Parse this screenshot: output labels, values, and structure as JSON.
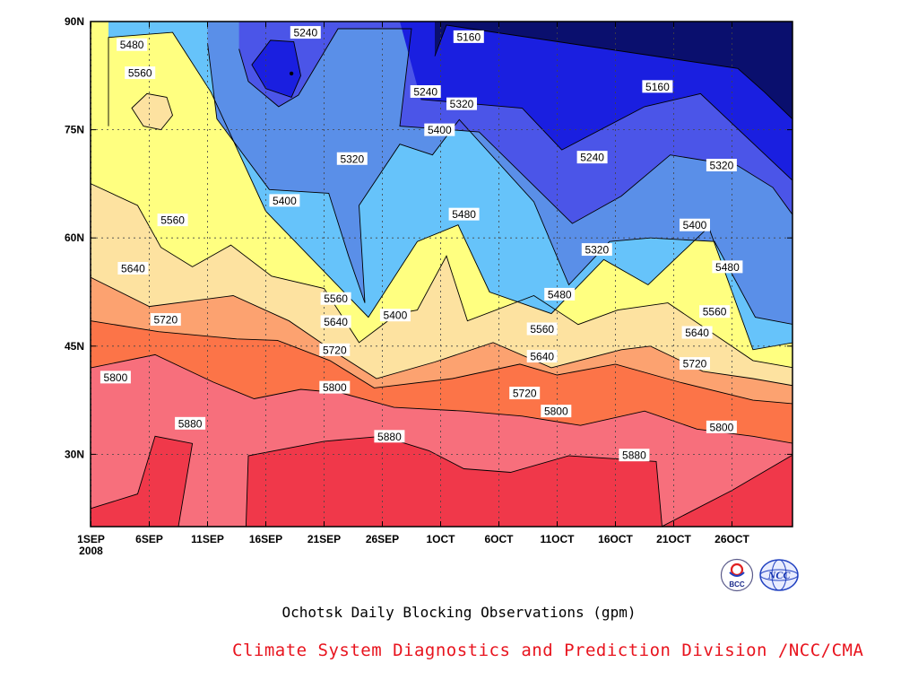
{
  "chart_data": {
    "type": "contour",
    "title": "Ochotsk Daily Blocking Observations (gpm)",
    "xlabel": "",
    "ylabel": "",
    "x_range_days": [
      0,
      60
    ],
    "ylim": [
      20,
      90
    ],
    "x_ticks": [
      {
        "day": 0,
        "label": "1SEP",
        "sub": "2008"
      },
      {
        "day": 5,
        "label": "6SEP"
      },
      {
        "day": 10,
        "label": "11SEP"
      },
      {
        "day": 15,
        "label": "16SEP"
      },
      {
        "day": 20,
        "label": "21SEP"
      },
      {
        "day": 25,
        "label": "26SEP"
      },
      {
        "day": 30,
        "label": "1OCT"
      },
      {
        "day": 35,
        "label": "6OCT"
      },
      {
        "day": 40,
        "label": "11OCT"
      },
      {
        "day": 45,
        "label": "16OCT"
      },
      {
        "day": 50,
        "label": "21OCT"
      },
      {
        "day": 55,
        "label": "26OCT"
      }
    ],
    "y_ticks": [
      {
        "lat": 30,
        "label": "30N"
      },
      {
        "lat": 45,
        "label": "45N"
      },
      {
        "lat": 60,
        "label": "60N"
      },
      {
        "lat": 75,
        "label": "75N"
      },
      {
        "lat": 90,
        "label": "90N"
      }
    ],
    "grid": true,
    "levels": [
      5160,
      5240,
      5320,
      5400,
      5480,
      5560,
      5640,
      5720,
      5800,
      5880
    ],
    "fill_colors": [
      "#0a0f6e",
      "#1a1fe0",
      "#4b55e8",
      "#5a8fe8",
      "#66c3fa",
      "#ffff80",
      "#fde2a0",
      "#fca270",
      "#fc7448",
      "#f76f7c",
      "#f0384a"
    ],
    "contours": [
      {
        "level": 5160,
        "points": [
          [
            29.5,
            85.2
          ],
          [
            30.5,
            89.5
          ],
          [
            55.5,
            83.5
          ],
          [
            57.8,
            80.2
          ],
          [
            60.3,
            76.3
          ],
          [
            60.3,
            90.0
          ],
          [
            29.5,
            90.0
          ]
        ]
      },
      {
        "level": 5240,
        "points": [
          [
            28.3,
            79.2
          ],
          [
            37.0,
            78.0
          ],
          [
            40.4,
            72.2
          ],
          [
            47.5,
            78.2
          ],
          [
            52.3,
            80.0
          ],
          [
            60.3,
            67.8
          ],
          [
            60.3,
            90.0
          ],
          [
            26.5,
            90.0
          ]
        ]
      },
      {
        "level": 5320,
        "points": [
          [
            12.7,
            86.2
          ],
          [
            13.5,
            81.7
          ],
          [
            16.1,
            78.2
          ],
          [
            17.8,
            79.8
          ],
          [
            21.2,
            89.0
          ],
          [
            27.5,
            89.0
          ],
          [
            26.5,
            75.5
          ],
          [
            33.3,
            74.7
          ],
          [
            41.3,
            62.0
          ],
          [
            45.5,
            65.8
          ],
          [
            49.7,
            71.5
          ],
          [
            55.5,
            70.0
          ],
          [
            58.5,
            67.0
          ],
          [
            60.3,
            63.0
          ],
          [
            60.3,
            90.0
          ],
          [
            12.7,
            90.0
          ]
        ]
      },
      {
        "level": 5400,
        "points": [
          [
            10.0,
            87.0
          ],
          [
            10.8,
            76.5
          ],
          [
            15.3,
            66.7
          ],
          [
            20.4,
            66.2
          ],
          [
            22.1,
            57.5
          ],
          [
            23.5,
            51.0
          ],
          [
            23.0,
            64.5
          ],
          [
            26.5,
            73.0
          ],
          [
            29.3,
            71.5
          ],
          [
            31.6,
            76.4
          ],
          [
            38.0,
            65.0
          ],
          [
            41.0,
            53.5
          ],
          [
            44.5,
            59.5
          ],
          [
            48.0,
            60.0
          ],
          [
            53.5,
            59.5
          ],
          [
            57.0,
            49.0
          ],
          [
            60.3,
            48.0
          ],
          [
            60.3,
            90.0
          ],
          [
            10.0,
            90.0
          ]
        ]
      },
      {
        "level": 5480,
        "points": [
          [
            1.5,
            75.5
          ],
          [
            1.5,
            87.8
          ],
          [
            7.0,
            88.5
          ],
          [
            10.3,
            80.2
          ],
          [
            15.0,
            63.7
          ],
          [
            23.8,
            49.0
          ],
          [
            26.2,
            55.0
          ],
          [
            28.0,
            59.5
          ],
          [
            31.5,
            61.8
          ],
          [
            34.2,
            52.5
          ],
          [
            39.5,
            49.5
          ],
          [
            44.0,
            57.0
          ],
          [
            47.8,
            53.5
          ],
          [
            53.0,
            61.5
          ],
          [
            56.8,
            44.5
          ],
          [
            60.3,
            45.5
          ],
          [
            60.3,
            90.0
          ],
          [
            1.5,
            90.0
          ]
        ]
      },
      {
        "level": 5560,
        "points": [
          [
            0.0,
            67.5
          ],
          [
            4.0,
            64.5
          ],
          [
            6.0,
            58.7
          ],
          [
            8.7,
            56.0
          ],
          [
            12.0,
            59.0
          ],
          [
            15.5,
            54.7
          ],
          [
            20.0,
            53.0
          ],
          [
            23.0,
            45.5
          ],
          [
            26.3,
            49.5
          ],
          [
            28.0,
            50.0
          ],
          [
            30.5,
            57.5
          ],
          [
            32.3,
            48.5
          ],
          [
            38.0,
            52.0
          ],
          [
            41.8,
            48.0
          ],
          [
            45.2,
            50.0
          ],
          [
            49.5,
            51.0
          ],
          [
            56.8,
            43.0
          ],
          [
            60.3,
            42.0
          ],
          [
            60.3,
            90.0
          ],
          [
            0.0,
            90.0
          ]
        ]
      },
      {
        "level": 5640,
        "points": [
          [
            0.0,
            54.5
          ],
          [
            5.0,
            50.5
          ],
          [
            12.2,
            52.0
          ],
          [
            17.0,
            48.5
          ],
          [
            20.8,
            44.3
          ],
          [
            24.5,
            40.5
          ],
          [
            29.5,
            42.8
          ],
          [
            34.5,
            45.5
          ],
          [
            39.5,
            42.0
          ],
          [
            45.5,
            44.5
          ],
          [
            48.0,
            45.0
          ],
          [
            52.5,
            41.5
          ],
          [
            56.8,
            40.5
          ],
          [
            60.3,
            39.5
          ],
          [
            60.3,
            90.0
          ],
          [
            0.0,
            90.0
          ]
        ]
      },
      {
        "level": 5720,
        "points": [
          [
            0.0,
            48.5
          ],
          [
            5.8,
            47.0
          ],
          [
            12.5,
            46.0
          ],
          [
            16.0,
            45.8
          ],
          [
            20.5,
            43.0
          ],
          [
            24.3,
            39.2
          ],
          [
            31.0,
            40.5
          ],
          [
            36.8,
            42.5
          ],
          [
            40.0,
            41.0
          ],
          [
            45.0,
            42.5
          ],
          [
            50.5,
            40.0
          ],
          [
            56.8,
            37.5
          ],
          [
            60.3,
            37.0
          ],
          [
            60.3,
            90.0
          ],
          [
            0.0,
            90.0
          ]
        ]
      },
      {
        "level": 5800,
        "points": [
          [
            0.0,
            42.0
          ],
          [
            5.5,
            43.8
          ],
          [
            10.5,
            40.0
          ],
          [
            14.0,
            37.7
          ],
          [
            18.0,
            39.0
          ],
          [
            21.5,
            38.5
          ],
          [
            26.0,
            36.5
          ],
          [
            32.0,
            36.0
          ],
          [
            37.0,
            35.3
          ],
          [
            42.0,
            34.0
          ],
          [
            47.5,
            36.0
          ],
          [
            52.0,
            33.5
          ],
          [
            56.8,
            32.5
          ],
          [
            60.3,
            31.5
          ],
          [
            60.3,
            90.0
          ],
          [
            0.0,
            90.0
          ]
        ]
      },
      {
        "level": 5880,
        "points": [
          [
            0.0,
            22.5
          ],
          [
            4.0,
            24.5
          ],
          [
            5.5,
            32.5
          ],
          [
            8.7,
            31.5
          ],
          [
            7.5,
            20.0
          ],
          [
            13.3,
            20.0
          ],
          [
            13.5,
            29.8
          ],
          [
            20.0,
            31.8
          ],
          [
            25.0,
            32.5
          ],
          [
            29.0,
            30.5
          ],
          [
            32.0,
            28.0
          ],
          [
            36.0,
            27.5
          ],
          [
            41.0,
            29.8
          ],
          [
            48.5,
            29.0
          ],
          [
            49.0,
            20.0
          ],
          [
            52.0,
            22.5
          ],
          [
            55.0,
            25.0
          ],
          [
            60.3,
            30.0
          ],
          [
            60.3,
            90.0
          ],
          [
            0.0,
            90.0
          ]
        ]
      }
    ],
    "cells": [
      {
        "level": 5240,
        "points": [
          [
            13.8,
            84.0
          ],
          [
            15.0,
            80.7
          ],
          [
            17.2,
            79.5
          ],
          [
            18.0,
            82.5
          ],
          [
            17.4,
            87.2
          ],
          [
            15.4,
            87.4
          ]
        ]
      },
      {
        "level": 5640,
        "points": [
          [
            3.5,
            78.0
          ],
          [
            4.5,
            75.5
          ],
          [
            6.0,
            75.0
          ],
          [
            7.0,
            77.0
          ],
          [
            6.5,
            79.5
          ],
          [
            4.8,
            80.0
          ]
        ]
      }
    ],
    "contour_labels": [
      {
        "level": 5480,
        "day": 2.2,
        "lat": 86.8
      },
      {
        "level": 5560,
        "day": 2.9,
        "lat": 82.9
      },
      {
        "level": 5240,
        "day": 17.1,
        "lat": 88.5
      },
      {
        "level": 5160,
        "day": 31.1,
        "lat": 87.9
      },
      {
        "level": 5240,
        "day": 27.4,
        "lat": 80.3
      },
      {
        "level": 5320,
        "day": 30.5,
        "lat": 78.6
      },
      {
        "level": 5160,
        "day": 47.3,
        "lat": 81.0
      },
      {
        "level": 5400,
        "day": 28.6,
        "lat": 75.0
      },
      {
        "level": 5320,
        "day": 21.1,
        "lat": 71.0
      },
      {
        "level": 5240,
        "day": 41.7,
        "lat": 71.2
      },
      {
        "level": 5320,
        "day": 52.8,
        "lat": 70.1
      },
      {
        "level": 5400,
        "day": 15.3,
        "lat": 65.2
      },
      {
        "level": 5560,
        "day": 5.7,
        "lat": 62.5
      },
      {
        "level": 5480,
        "day": 30.7,
        "lat": 63.3
      },
      {
        "level": 5320,
        "day": 42.1,
        "lat": 58.4
      },
      {
        "level": 5400,
        "day": 50.5,
        "lat": 61.8
      },
      {
        "level": 5640,
        "day": 2.3,
        "lat": 55.8
      },
      {
        "level": 5480,
        "day": 53.3,
        "lat": 56.0
      },
      {
        "level": 5560,
        "day": 19.7,
        "lat": 51.6
      },
      {
        "level": 5480,
        "day": 38.9,
        "lat": 52.2
      },
      {
        "level": 5560,
        "day": 52.2,
        "lat": 49.8
      },
      {
        "level": 5400,
        "day": 24.8,
        "lat": 49.3
      },
      {
        "level": 5720,
        "day": 5.1,
        "lat": 48.7
      },
      {
        "level": 5640,
        "day": 19.7,
        "lat": 48.4
      },
      {
        "level": 5560,
        "day": 37.4,
        "lat": 47.4
      },
      {
        "level": 5640,
        "day": 50.7,
        "lat": 46.9
      },
      {
        "level": 5720,
        "day": 19.6,
        "lat": 44.5
      },
      {
        "level": 5640,
        "day": 37.4,
        "lat": 43.6
      },
      {
        "level": 5720,
        "day": 50.5,
        "lat": 42.6
      },
      {
        "level": 5800,
        "day": 0.8,
        "lat": 40.7
      },
      {
        "level": 5800,
        "day": 19.6,
        "lat": 39.3
      },
      {
        "level": 5720,
        "day": 35.9,
        "lat": 38.5
      },
      {
        "level": 5800,
        "day": 38.6,
        "lat": 36.0
      },
      {
        "level": 5800,
        "day": 52.8,
        "lat": 33.8
      },
      {
        "level": 5880,
        "day": 7.2,
        "lat": 34.3
      },
      {
        "level": 5880,
        "day": 24.3,
        "lat": 32.5
      },
      {
        "level": 5880,
        "day": 45.3,
        "lat": 29.9
      }
    ],
    "markers": [
      {
        "day": 17.2,
        "lat": 82.8
      }
    ]
  },
  "title": "Ochotsk Daily Blocking Observations (gpm)",
  "credit": "Climate System Diagnostics and Prediction Division /NCC/CMA",
  "credit_color": "#e8141e",
  "logos": [
    {
      "name": "bcc-logo",
      "text": "BCC"
    },
    {
      "name": "ncc-logo",
      "text": "NCC"
    }
  ]
}
